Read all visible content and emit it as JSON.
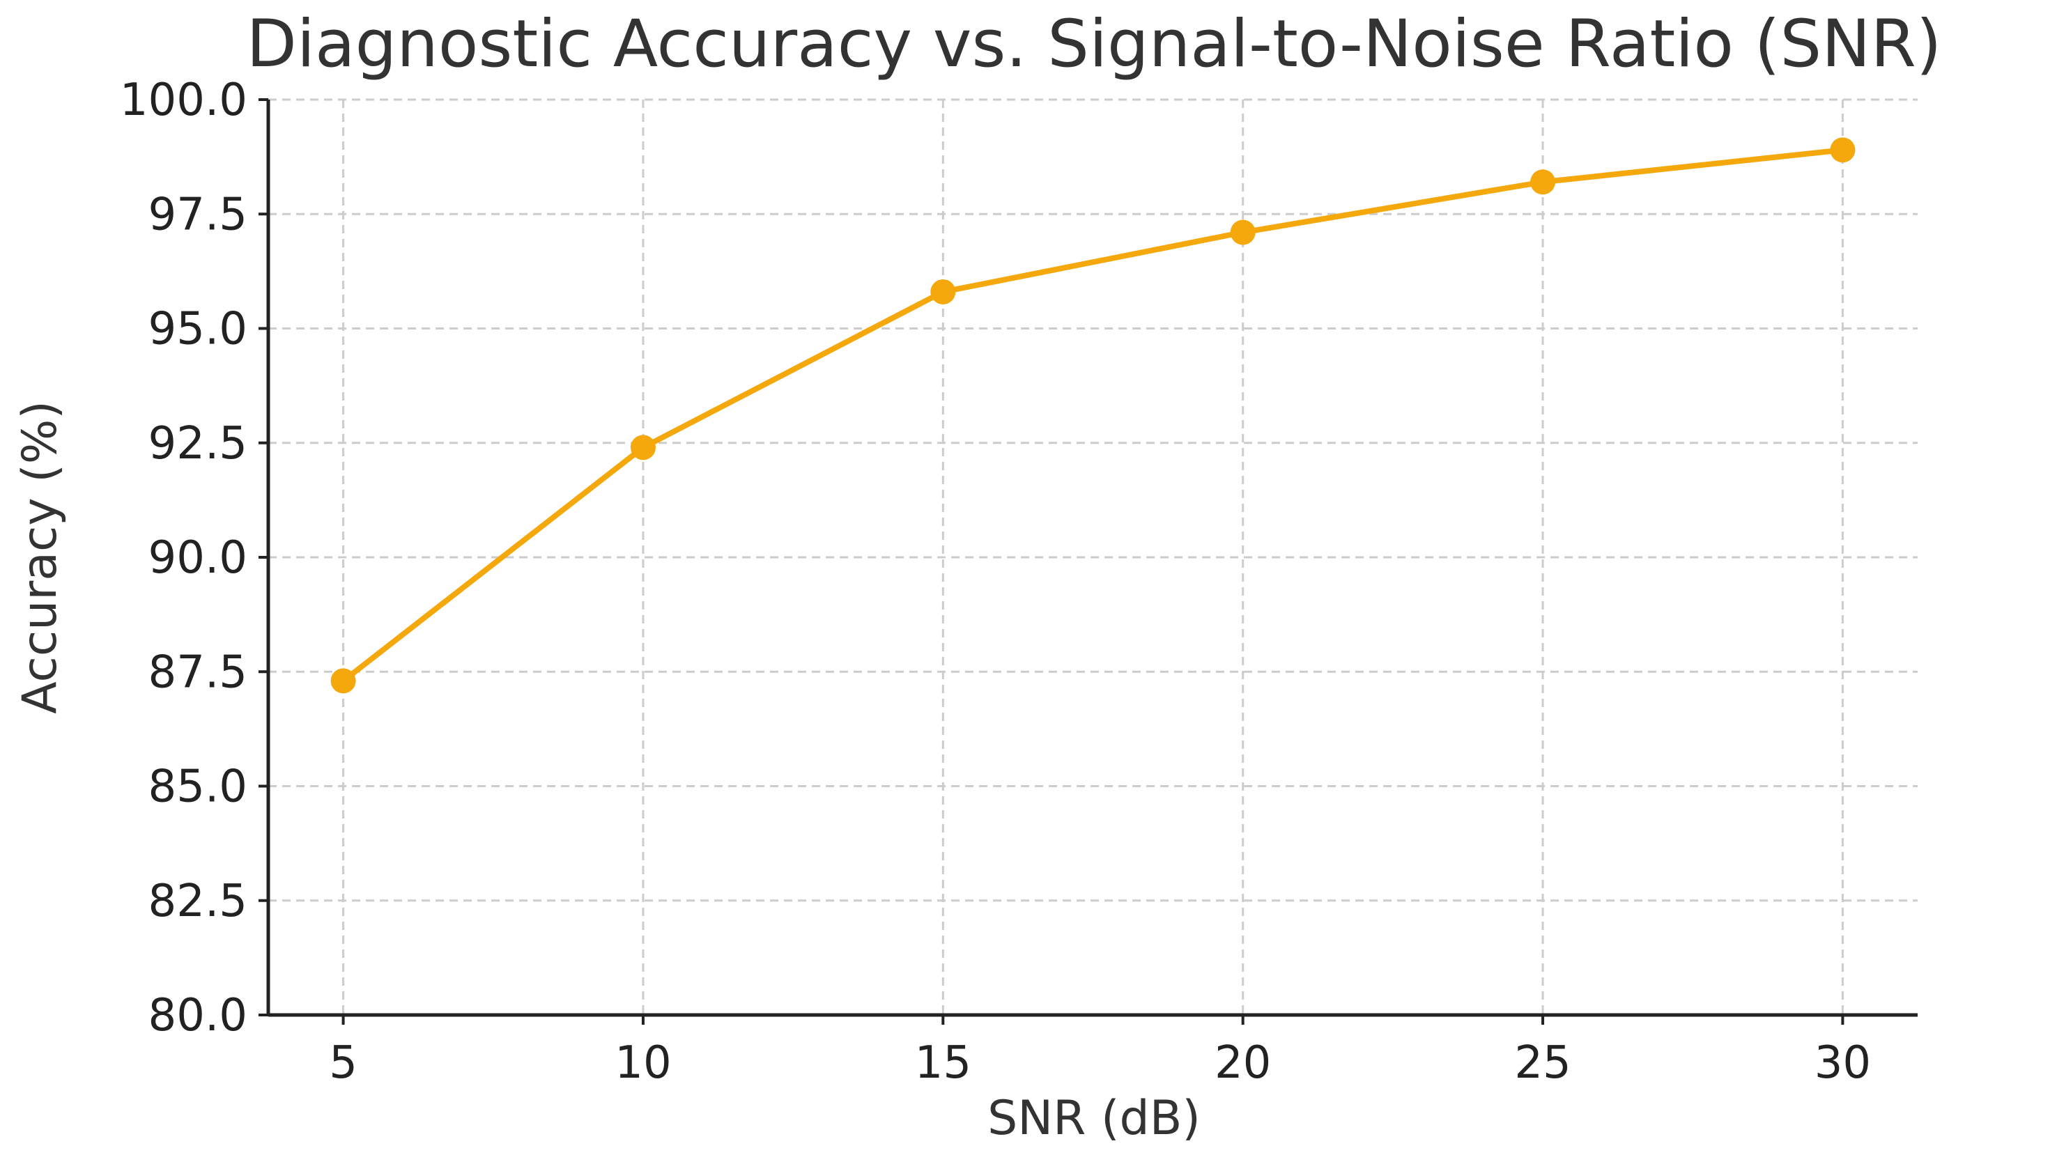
{
  "chart_data": {
    "type": "line",
    "title": "Diagnostic Accuracy vs. Signal-to-Noise Ratio (SNR)",
    "xlabel": "SNR (dB)",
    "ylabel": "Accuracy (%)",
    "x": [
      5,
      10,
      15,
      20,
      25,
      30
    ],
    "xticks": [
      "5",
      "10",
      "15",
      "20",
      "25",
      "30"
    ],
    "xlim": [
      3.75,
      31.25
    ],
    "yticks": [
      "80.0",
      "82.5",
      "85.0",
      "87.5",
      "90.0",
      "92.5",
      "95.0",
      "97.5",
      "100.0"
    ],
    "ylim": [
      80,
      100
    ],
    "grid": true,
    "series": [
      {
        "values": [
          87.3,
          92.4,
          95.8,
          97.1,
          98.2,
          98.9
        ],
        "color": "#F5A80C",
        "marker": "circle"
      }
    ]
  }
}
